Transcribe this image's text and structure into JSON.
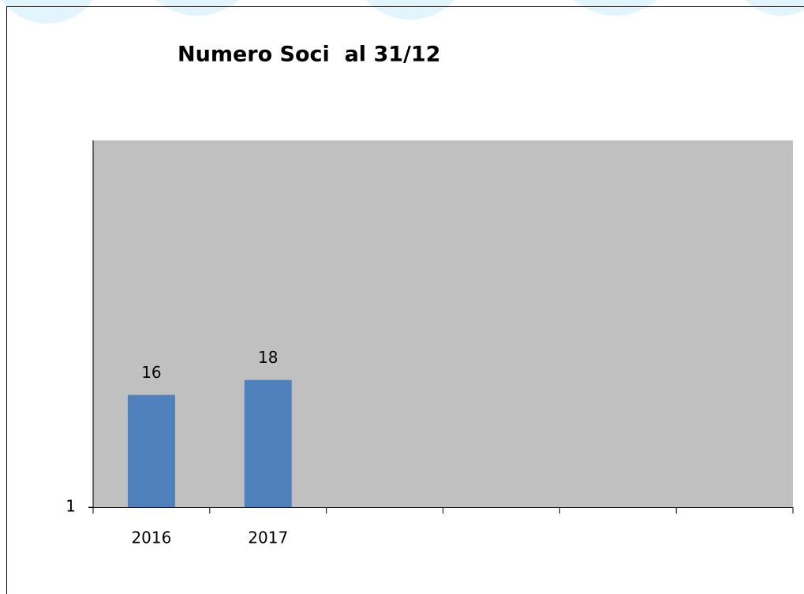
{
  "chart_data": {
    "type": "bar",
    "title": "Numero Soci  al 31/12",
    "categories": [
      "2016",
      "2017",
      null,
      null,
      null,
      null
    ],
    "values": [
      16,
      18,
      null,
      null,
      null,
      null
    ],
    "color": "#4f81bd",
    "plot_background": "#c0c0c0",
    "ylim": [
      1,
      50
    ],
    "yticks": [
      1
    ],
    "grid": false
  }
}
